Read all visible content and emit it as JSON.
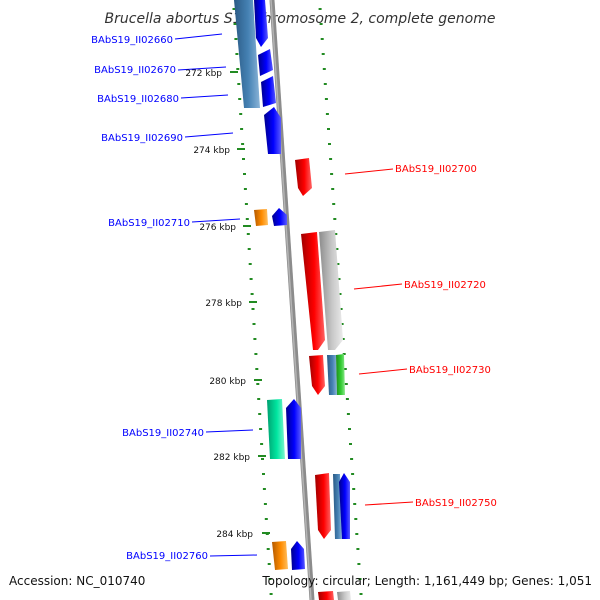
{
  "header": {
    "title": "Brucella abortus S19 chromosome 2, complete genome"
  },
  "footer": {
    "accession": "Accession: NC_010740",
    "topology": "Topology: circular; Length: 1,161,449 bp; Genes: 1,051"
  },
  "colors": {
    "blue": "#0000ff",
    "steelblue": "#4682b4",
    "red": "#ff0000",
    "gray": "#c8c8c8",
    "orange": "#ff8c00",
    "green": "#32cd32",
    "teal": "#00e6a0",
    "tick": "#228b22",
    "backbone": "#8c8c8c"
  },
  "gene_labels": [
    {
      "id": "blue_1",
      "text": "BAbS19_II02660",
      "color": "blue"
    },
    {
      "id": "blue_2",
      "text": "BAbS19_II02670",
      "color": "blue"
    },
    {
      "id": "blue_3",
      "text": "BAbS19_II02680",
      "color": "blue"
    },
    {
      "id": "blue_4",
      "text": "BAbS19_II02690",
      "color": "blue"
    },
    {
      "id": "red_1",
      "text": "BAbS19_II02700",
      "color": "red"
    },
    {
      "id": "blue_5",
      "text": "BAbS19_II02710",
      "color": "blue"
    },
    {
      "id": "red_2",
      "text": "BAbS19_II02720",
      "color": "red"
    },
    {
      "id": "red_3",
      "text": "BAbS19_II02730",
      "color": "red"
    },
    {
      "id": "blue_6",
      "text": "BAbS19_II02740",
      "color": "blue"
    },
    {
      "id": "red_4",
      "text": "BAbS19_II02750",
      "color": "red"
    },
    {
      "id": "blue_7",
      "text": "BAbS19_II02760",
      "color": "blue"
    }
  ],
  "scale_ticks": [
    "272 kbp",
    "274 kbp",
    "276 kbp",
    "278 kbp",
    "280 kbp",
    "282 kbp",
    "284 kbp"
  ]
}
